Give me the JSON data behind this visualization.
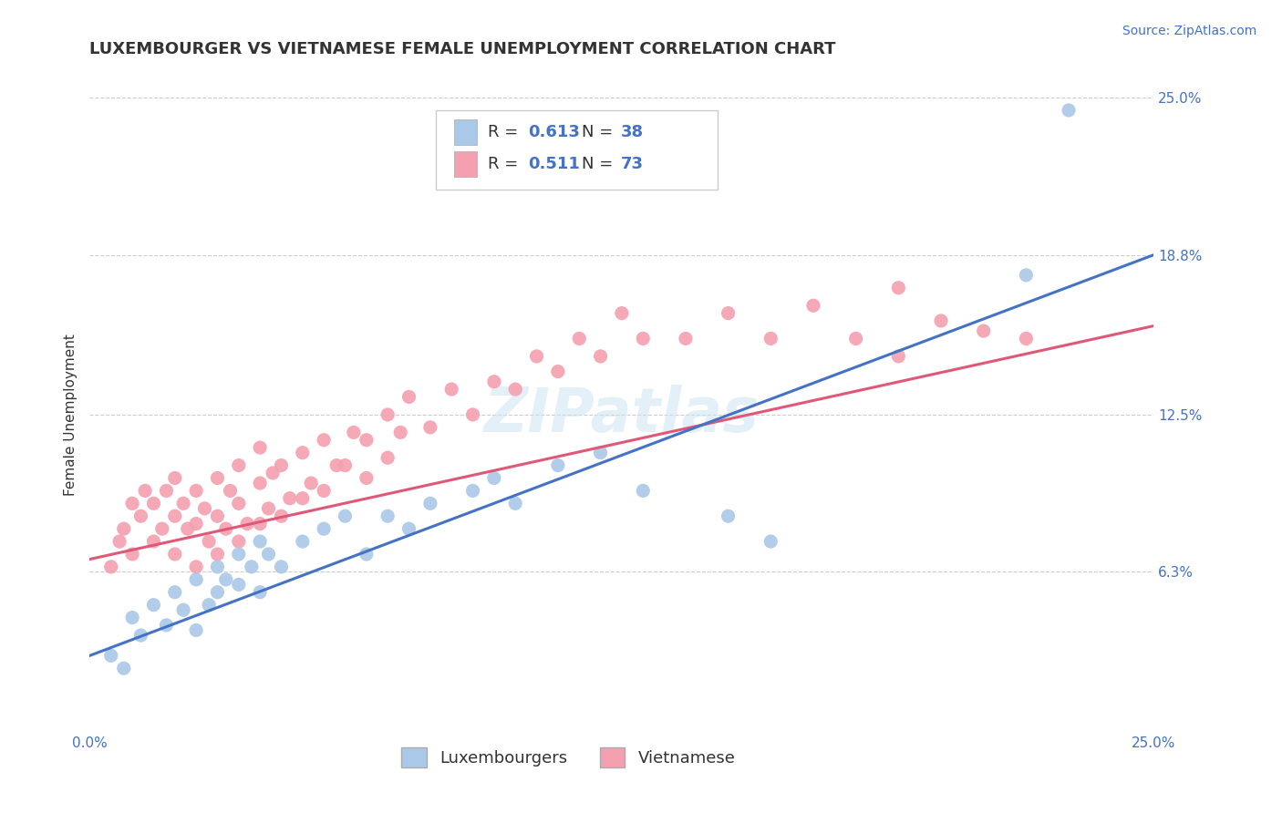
{
  "title": "LUXEMBOURGER VS VIETNAMESE FEMALE UNEMPLOYMENT CORRELATION CHART",
  "source": "Source: ZipAtlas.com",
  "ylabel": "Female Unemployment",
  "xlim": [
    0.0,
    0.25
  ],
  "ylim": [
    0.0,
    0.25
  ],
  "ytick_labels": [
    "6.3%",
    "12.5%",
    "18.8%",
    "25.0%"
  ],
  "ytick_values": [
    0.063,
    0.125,
    0.188,
    0.25
  ],
  "background_color": "#ffffff",
  "luxembourger_color": "#aac8e8",
  "vietnamese_color": "#f4a0b0",
  "luxembourger_line_color": "#4472c4",
  "vietnamese_line_color": "#e05878",
  "legend_lux_r": "0.613",
  "legend_lux_n": "38",
  "legend_viet_r": "0.511",
  "legend_viet_n": "73",
  "lux_line_x0": 0.0,
  "lux_line_y0": 0.03,
  "lux_line_x1": 0.25,
  "lux_line_y1": 0.188,
  "viet_line_x0": 0.0,
  "viet_line_y0": 0.068,
  "viet_line_x1": 0.25,
  "viet_line_y1": 0.16,
  "lux_x": [
    0.005,
    0.008,
    0.01,
    0.012,
    0.015,
    0.018,
    0.02,
    0.022,
    0.025,
    0.025,
    0.028,
    0.03,
    0.03,
    0.032,
    0.035,
    0.035,
    0.038,
    0.04,
    0.04,
    0.042,
    0.045,
    0.05,
    0.055,
    0.06,
    0.065,
    0.07,
    0.075,
    0.08,
    0.09,
    0.095,
    0.1,
    0.11,
    0.12,
    0.13,
    0.15,
    0.16,
    0.22,
    0.23
  ],
  "lux_y": [
    0.03,
    0.025,
    0.045,
    0.038,
    0.05,
    0.042,
    0.055,
    0.048,
    0.06,
    0.04,
    0.05,
    0.065,
    0.055,
    0.06,
    0.07,
    0.058,
    0.065,
    0.075,
    0.055,
    0.07,
    0.065,
    0.075,
    0.08,
    0.085,
    0.07,
    0.085,
    0.08,
    0.09,
    0.095,
    0.1,
    0.09,
    0.105,
    0.11,
    0.095,
    0.085,
    0.075,
    0.18,
    0.245
  ],
  "viet_x": [
    0.005,
    0.007,
    0.008,
    0.01,
    0.01,
    0.012,
    0.013,
    0.015,
    0.015,
    0.017,
    0.018,
    0.02,
    0.02,
    0.02,
    0.022,
    0.023,
    0.025,
    0.025,
    0.025,
    0.027,
    0.028,
    0.03,
    0.03,
    0.03,
    0.032,
    0.033,
    0.035,
    0.035,
    0.035,
    0.037,
    0.04,
    0.04,
    0.04,
    0.042,
    0.043,
    0.045,
    0.045,
    0.047,
    0.05,
    0.05,
    0.052,
    0.055,
    0.055,
    0.058,
    0.06,
    0.062,
    0.065,
    0.065,
    0.07,
    0.07,
    0.073,
    0.075,
    0.08,
    0.085,
    0.09,
    0.095,
    0.1,
    0.105,
    0.11,
    0.115,
    0.12,
    0.125,
    0.13,
    0.14,
    0.15,
    0.16,
    0.17,
    0.18,
    0.19,
    0.19,
    0.2,
    0.21,
    0.22
  ],
  "viet_y": [
    0.065,
    0.075,
    0.08,
    0.07,
    0.09,
    0.085,
    0.095,
    0.075,
    0.09,
    0.08,
    0.095,
    0.07,
    0.085,
    0.1,
    0.09,
    0.08,
    0.065,
    0.082,
    0.095,
    0.088,
    0.075,
    0.07,
    0.085,
    0.1,
    0.08,
    0.095,
    0.075,
    0.09,
    0.105,
    0.082,
    0.082,
    0.098,
    0.112,
    0.088,
    0.102,
    0.085,
    0.105,
    0.092,
    0.092,
    0.11,
    0.098,
    0.095,
    0.115,
    0.105,
    0.105,
    0.118,
    0.1,
    0.115,
    0.108,
    0.125,
    0.118,
    0.132,
    0.12,
    0.135,
    0.125,
    0.138,
    0.135,
    0.148,
    0.142,
    0.155,
    0.148,
    0.165,
    0.155,
    0.155,
    0.165,
    0.155,
    0.168,
    0.155,
    0.148,
    0.175,
    0.162,
    0.158,
    0.155
  ],
  "title_fontsize": 13,
  "label_fontsize": 11,
  "tick_fontsize": 11,
  "source_fontsize": 10
}
